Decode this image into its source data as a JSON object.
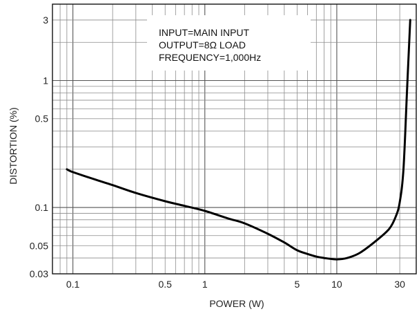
{
  "chart_data": {
    "type": "line",
    "title": "",
    "xlabel": "POWER (W)",
    "ylabel": "DISTORTION (%)",
    "x_scale": "log",
    "y_scale": "log",
    "xlim": [
      0.07,
      40
    ],
    "ylim": [
      0.03,
      4
    ],
    "grid": true,
    "x_ticks": [
      {
        "value": 0.1,
        "label": "0.1"
      },
      {
        "value": 0.5,
        "label": "0.5"
      },
      {
        "value": 1,
        "label": "1"
      },
      {
        "value": 5,
        "label": "5"
      },
      {
        "value": 10,
        "label": "10"
      },
      {
        "value": 30,
        "label": "30"
      }
    ],
    "y_ticks": [
      {
        "value": 3,
        "label": "3"
      },
      {
        "value": 1,
        "label": "1"
      },
      {
        "value": 0.5,
        "label": "0.5"
      },
      {
        "value": 0.1,
        "label": "0.1"
      },
      {
        "value": 0.05,
        "label": "0.05"
      },
      {
        "value": 0.03,
        "label": "0.03"
      }
    ],
    "annotations": [
      "INPUT=MAIN INPUT",
      "OUTPUT=8Ω LOAD",
      "FREQUENCY=1,000Hz"
    ],
    "series": [
      {
        "x": [
          0.09,
          0.1,
          0.15,
          0.2,
          0.3,
          0.5,
          0.7,
          1,
          1.5,
          2,
          3,
          4,
          5,
          6,
          7,
          8,
          10,
          12,
          15,
          20,
          25,
          28,
          30,
          32,
          34,
          36
        ],
        "y": [
          0.2,
          0.19,
          0.165,
          0.15,
          0.13,
          0.112,
          0.103,
          0.094,
          0.082,
          0.075,
          0.062,
          0.053,
          0.046,
          0.043,
          0.041,
          0.04,
          0.039,
          0.04,
          0.044,
          0.055,
          0.068,
          0.085,
          0.11,
          0.2,
          0.8,
          3.0
        ]
      }
    ]
  }
}
